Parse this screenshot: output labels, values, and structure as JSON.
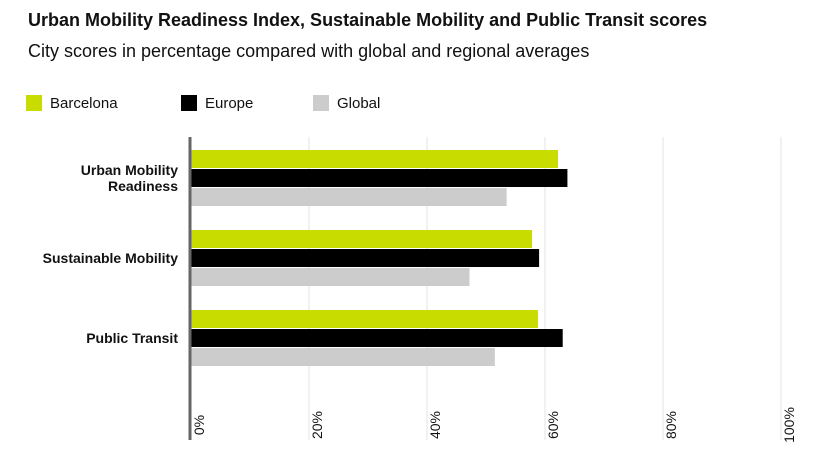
{
  "title": "Urban Mobility Readiness Index, Sustainable Mobility and Public Transit scores",
  "subtitle": "City scores in percentage compared with global and regional averages",
  "legend": [
    {
      "name": "Barcelona",
      "color": "#c8dc00"
    },
    {
      "name": "Europe",
      "color": "#000000"
    },
    {
      "name": "Global",
      "color": "#cccccc"
    }
  ],
  "chart_data": {
    "type": "bar",
    "orientation": "horizontal",
    "categories": [
      "Urban Mobility Readiness",
      "Sustainable Mobility",
      "Public Transit"
    ],
    "series": [
      {
        "name": "Barcelona",
        "color": "#c8dc00",
        "values": [
          62.2,
          57.8,
          58.8
        ]
      },
      {
        "name": "Europe",
        "color": "#000000",
        "values": [
          63.8,
          59.0,
          63.0
        ]
      },
      {
        "name": "Global",
        "color": "#cccccc",
        "values": [
          53.5,
          47.2,
          51.5
        ]
      }
    ],
    "xlim": [
      0,
      100
    ],
    "x_ticks": [
      "0%",
      "20%",
      "40%",
      "60%",
      "80%",
      "100%"
    ],
    "grid": true,
    "legend_position": "top-left"
  }
}
